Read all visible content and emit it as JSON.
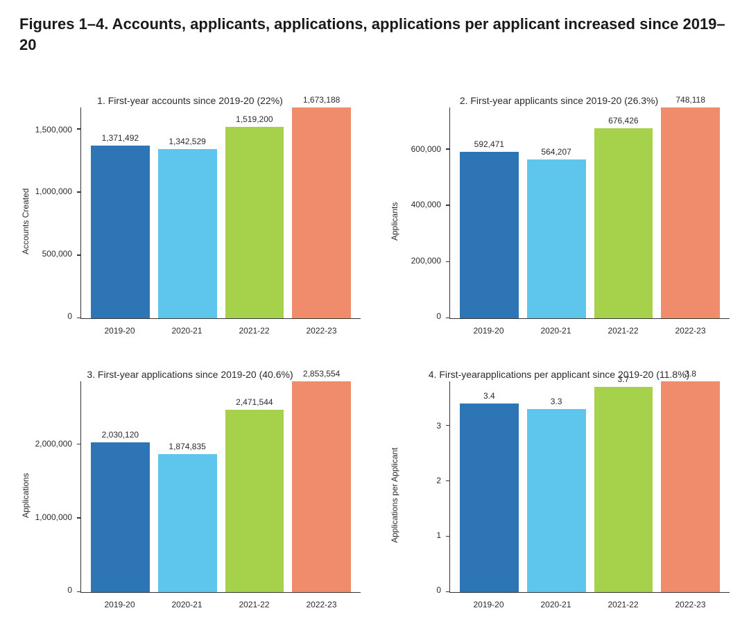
{
  "main_title": "Figures 1–4. Accounts, applicants, applications, applications per applicant increased since 2019–20",
  "categories": [
    "2019-20",
    "2020-21",
    "2021-22",
    "2022-23"
  ],
  "bar_colors": [
    "#2e75b6",
    "#5ec5ed",
    "#a5d24a",
    "#f08b6c"
  ],
  "background_color": "#ffffff",
  "axis_color": "#333333",
  "text_color": "#2a2a2a",
  "title_fontsize": 22,
  "subtitle_fontsize": 14,
  "label_fontsize": 12,
  "bar_width_ratio": 0.85,
  "panels": [
    {
      "id": "accounts",
      "title": "1. First-year accounts since 2019-20 (22%)",
      "ylabel": "Accounts Created",
      "ymax": 1673188,
      "yticks": [
        0,
        500000,
        1000000,
        1500000
      ],
      "ytick_labels": [
        "0",
        "500,000",
        "1,000,000",
        "1,500,000"
      ],
      "values": [
        1371492,
        1342529,
        1519200,
        1673188
      ],
      "value_labels": [
        "1,371,492",
        "1,342,529",
        "1,519,200",
        "1,673,188"
      ]
    },
    {
      "id": "applicants",
      "title": "2. First-year applicants since 2019-20 (26.3%)",
      "ylabel": "Applicants",
      "ymax": 748118,
      "yticks": [
        0,
        200000,
        400000,
        600000
      ],
      "ytick_labels": [
        "0",
        "200,000",
        "400,000",
        "600,000"
      ],
      "values": [
        592471,
        564207,
        676426,
        748118
      ],
      "value_labels": [
        "592,471",
        "564,207",
        "676,426",
        "748,118"
      ]
    },
    {
      "id": "applications",
      "title": "3. First-year applications since 2019-20 (40.6%)",
      "ylabel": "Applications",
      "ymax": 2853554,
      "yticks": [
        0,
        1000000,
        2000000
      ],
      "ytick_labels": [
        "0",
        "1,000,000",
        "2,000,000"
      ],
      "values": [
        2030120,
        1874835,
        2471544,
        2853554
      ],
      "value_labels": [
        "2,030,120",
        "1,874,835",
        "2,471,544",
        "2,853,554"
      ]
    },
    {
      "id": "per_applicant",
      "title": "4. First-year\napplications per applicant since 2019-20 (11.8%)",
      "ylabel": "Applications per Applicant",
      "ymax": 3.8,
      "yticks": [
        0,
        1,
        2,
        3
      ],
      "ytick_labels": [
        "0",
        "1",
        "2",
        "3"
      ],
      "values": [
        3.4,
        3.3,
        3.7,
        3.8
      ],
      "value_labels": [
        "3.4",
        "3.3",
        "3.7",
        "3.8"
      ]
    }
  ]
}
